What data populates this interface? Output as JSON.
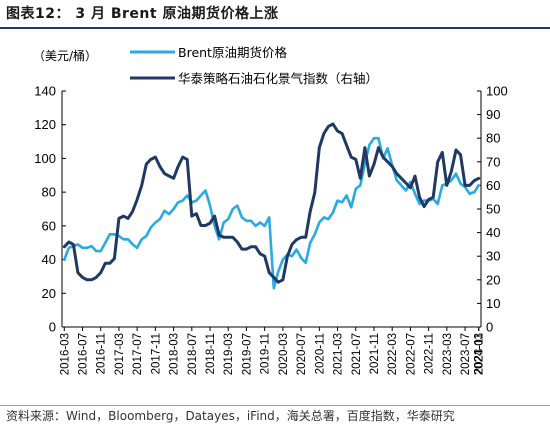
{
  "header": {
    "title": "图表12： 3 月 Brent 原油期货价格上涨"
  },
  "footer": {
    "source": "资料来源：Wind，Bloomberg，Datayes，iFind，海关总署，百度指数，华泰研究"
  },
  "chart_data": {
    "type": "line",
    "unit_left": "（美元/桶）",
    "y_left": {
      "min": 0,
      "max": 140,
      "ticks": [
        0,
        20,
        40,
        60,
        80,
        100,
        120,
        140
      ]
    },
    "y_right": {
      "min": 0,
      "max": 100,
      "ticks": [
        0,
        10,
        20,
        30,
        40,
        50,
        60,
        70,
        80,
        90,
        100
      ]
    },
    "x_tick_labels": [
      "2016-03",
      "2016-07",
      "2016-11",
      "2017-03",
      "2017-07",
      "2017-11",
      "2018-03",
      "2018-07",
      "2018-11",
      "2019-03",
      "2019-07",
      "2019-11",
      "2020-03",
      "2020-07",
      "2020-11",
      "2021-03",
      "2021-07",
      "2021-11",
      "2022-03",
      "2022-07",
      "2022-11",
      "2023-03",
      "2023-07",
      "2023-11",
      "2024-03"
    ],
    "legend_position": "top",
    "series": [
      {
        "name": "Brent原油期货价格",
        "axis": "left",
        "color": "#29aae1",
        "values": [
          40,
          47,
          48,
          49,
          47,
          47,
          48,
          45,
          45,
          50,
          55,
          55,
          54,
          52,
          52,
          49,
          47,
          52,
          54,
          59,
          62,
          64,
          69,
          67,
          70,
          74,
          75,
          78,
          74,
          75,
          78,
          81,
          72,
          60,
          52,
          62,
          64,
          70,
          72,
          65,
          63,
          63,
          60,
          62,
          60,
          65,
          23,
          33,
          40,
          43,
          42,
          46,
          41,
          38,
          50,
          55,
          62,
          65,
          64,
          68,
          75,
          74,
          78,
          71,
          82,
          84,
          97,
          108,
          112,
          112,
          100,
          106,
          96,
          87,
          84,
          81,
          86,
          79,
          73,
          75,
          75,
          76,
          73,
          84,
          85,
          87,
          91,
          85,
          83,
          79,
          80,
          84
        ]
      },
      {
        "name": "华泰策略石油石化景气指数（右轴）",
        "axis": "right",
        "color": "#1f3864",
        "values": [
          34,
          36,
          35,
          23,
          21,
          20,
          20,
          21,
          23,
          27,
          27,
          29,
          46,
          47,
          46,
          49,
          54,
          60,
          69,
          71,
          72,
          68,
          65,
          64,
          63,
          68,
          72,
          71,
          47,
          48,
          43,
          43,
          44,
          47,
          39,
          38,
          38,
          38,
          36,
          33,
          33,
          34,
          34,
          31,
          30,
          23,
          21,
          19,
          20,
          30,
          35,
          37,
          38,
          38,
          49,
          57,
          76,
          82,
          85,
          86,
          83,
          82,
          77,
          72,
          71,
          63,
          76,
          64,
          69,
          76,
          72,
          70,
          68,
          65,
          63,
          61,
          59,
          64,
          55,
          51,
          54,
          55,
          70,
          74,
          60,
          66,
          75,
          73,
          60,
          60,
          62,
          63
        ]
      }
    ]
  }
}
